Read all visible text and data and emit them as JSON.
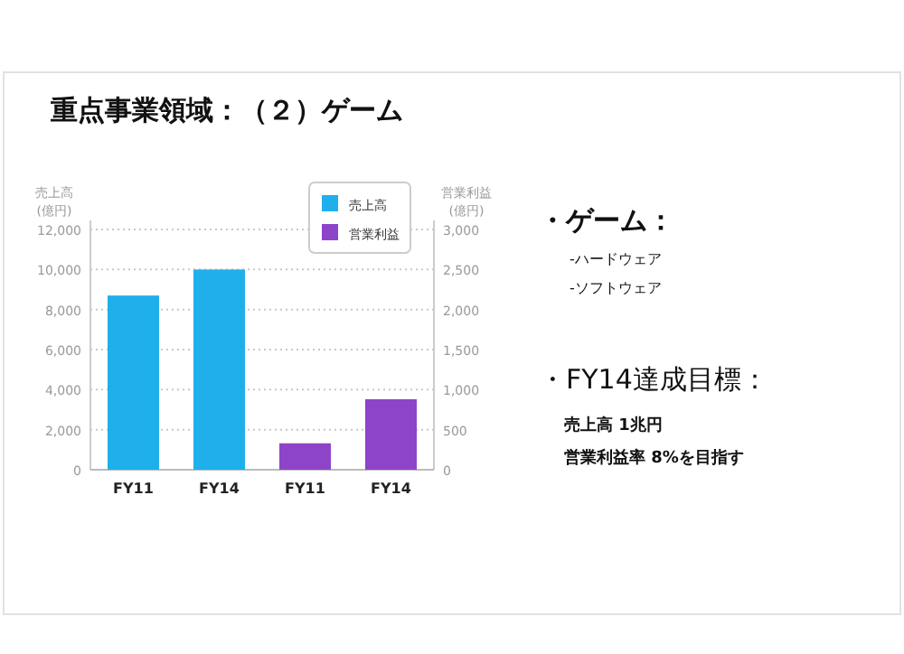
{
  "chart_data": [
    {
      "type": "bar",
      "title": "重点事業領域：（２）ゲーム",
      "ylabel": "売上高 (億円)",
      "y2label": "営業利益 (億円)",
      "categories": [
        "FY11",
        "FY14",
        "FY11",
        "FY14"
      ],
      "series": [
        {
          "name": "売上高",
          "color": "#1fb0ec",
          "values": [
            8700,
            10000,
            null,
            null
          ]
        },
        {
          "name": "営業利益",
          "color": "#8e44c8",
          "axis": "y2",
          "values": [
            null,
            null,
            330,
            880
          ]
        }
      ],
      "ylim": [
        0,
        12000
      ],
      "yticks": [
        0,
        {
          "value": 2000,
          "label": "2,000"
        },
        {
          "value": 4000,
          "label": "4,000"
        },
        {
          "value": 6000,
          "label": "6,000"
        },
        {
          "value": 8000,
          "label": "8,000"
        },
        {
          "value": 10000,
          "label": "10,000"
        },
        {
          "value": 12000,
          "label": "12,000"
        }
      ],
      "y2lim": [
        0,
        3000
      ],
      "y2ticks": [
        0,
        500,
        {
          "value": 1000,
          "label": "1,000"
        },
        {
          "value": 1500,
          "label": "1,500"
        },
        {
          "value": 2000,
          "label": "2,000"
        },
        {
          "value": 2500,
          "label": "2,500"
        },
        {
          "value": 3000,
          "label": "3,000"
        }
      ],
      "grid": "y",
      "legend": "top right"
    },
    {
      "type": "other",
      "annotations": [
        "・ゲーム：",
        "-ハードウェア",
        "-ソフトウェア",
        "・FY14達成目標：",
        "売上高 1兆円",
        "営業利益率 8%を目指す"
      ]
    }
  ]
}
